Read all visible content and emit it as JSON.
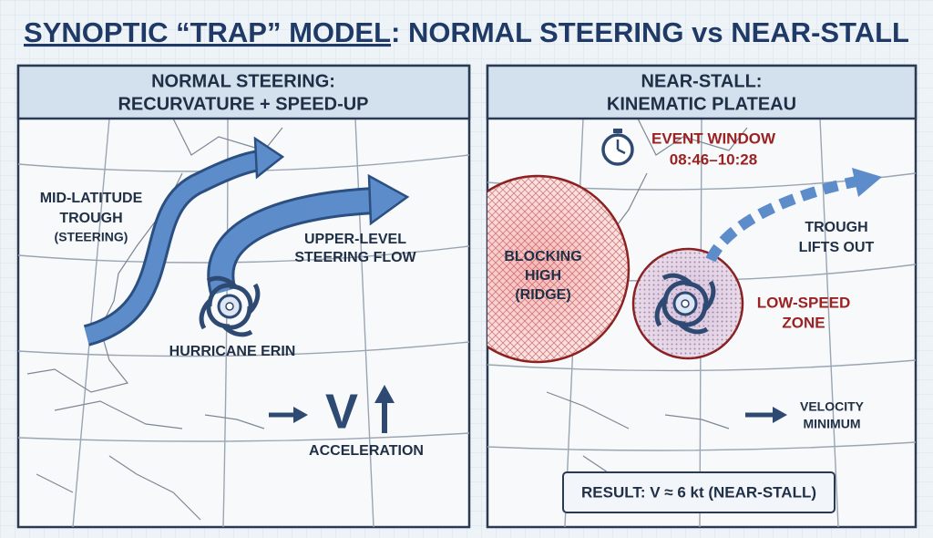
{
  "title": {
    "main": "SYNOPTIC “TRAP” MODEL",
    "rest": ": NORMAL STEERING vs NEAR-STALL"
  },
  "left_panel": {
    "header": [
      "NORMAL STEERING:",
      "RECURVATURE + SPEED-UP"
    ],
    "trough_label": [
      "MID-LATITUDE",
      "TROUGH",
      "(STEERING)"
    ],
    "flow_label": [
      "UPPER-LEVEL",
      "STEERING FLOW"
    ],
    "storm_label": "HURRICANE ERIN",
    "velocity_symbol": "V",
    "velocity_label": "ACCELERATION"
  },
  "right_panel": {
    "header": [
      "NEAR-STALL:",
      "KINEMATIC PLATEAU"
    ],
    "event_window": [
      "EVENT WINDOW",
      "08:46–10:28"
    ],
    "high_label": [
      "BLOCKING",
      "HIGH",
      "(RIDGE)"
    ],
    "trough_label": [
      "TROUGH",
      "LIFTS OUT"
    ],
    "zone_label": [
      "LOW-SPEED",
      "ZONE"
    ],
    "velocity_label": [
      "VELOCITY",
      "MINIMUM"
    ],
    "result": "RESULT: V ≈ 6 kt (NEAR-STALL)"
  }
}
